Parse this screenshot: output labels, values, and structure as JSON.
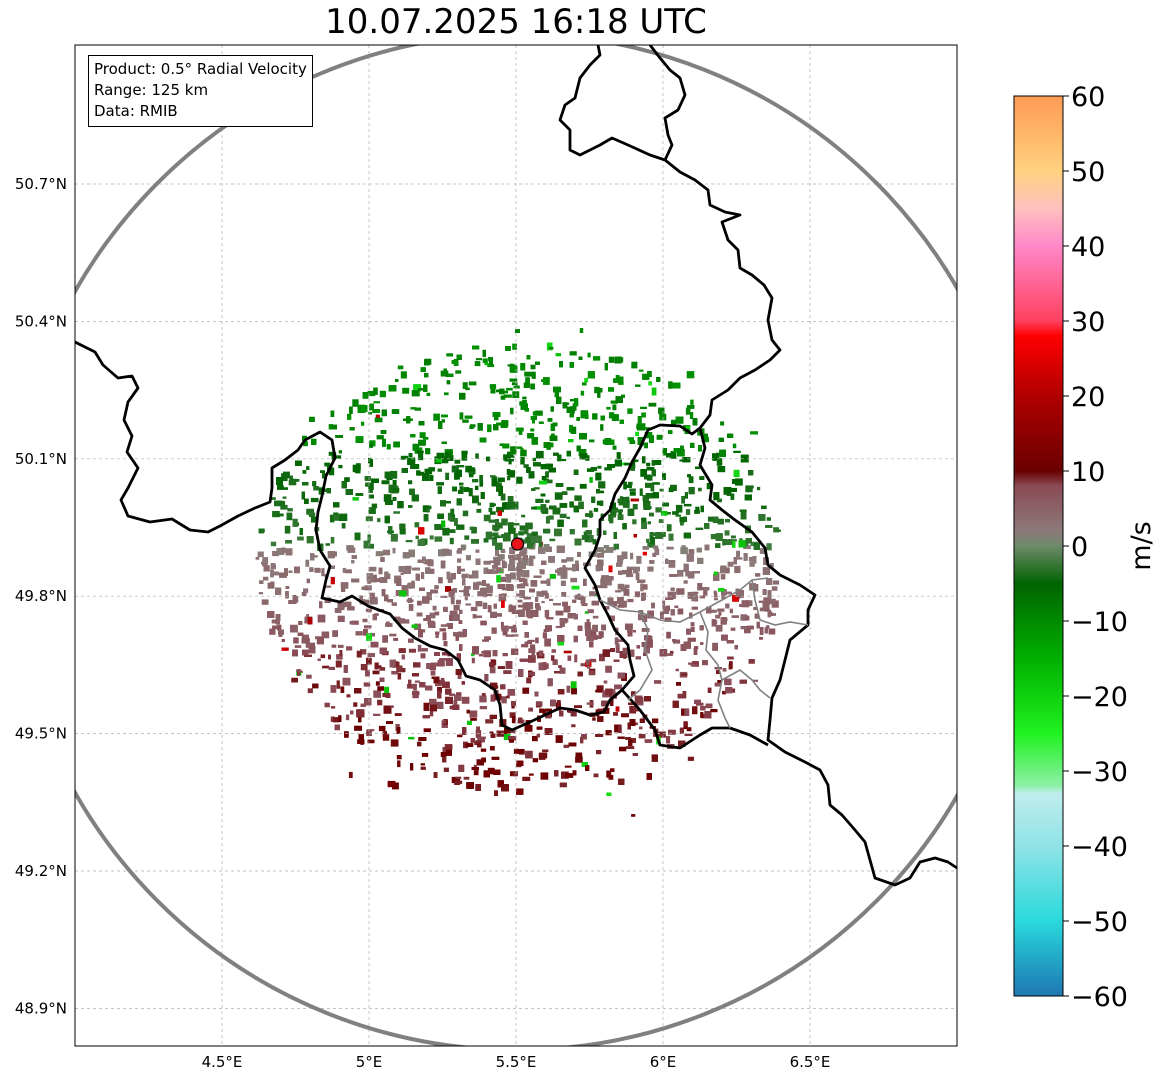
{
  "title": "10.07.2025 16:18 UTC",
  "info": {
    "product": "Product: 0.5° Radial Velocity",
    "range": "Range: 125 km",
    "source": "Data: RMIB"
  },
  "axes": {
    "lon_ticks": [
      "4.5°E",
      "5°E",
      "5.5°E",
      "6°E",
      "6.5°E"
    ],
    "lat_ticks": [
      "50.7°N",
      "50.4°N",
      "50.1°N",
      "49.8°N",
      "49.5°N",
      "49.2°N",
      "48.9°N"
    ],
    "lon_values": [
      4.5,
      5.0,
      5.5,
      6.0,
      6.5
    ],
    "lat_values": [
      50.7,
      50.4,
      50.1,
      49.8,
      49.5,
      49.2,
      48.9
    ],
    "lon_range": [
      4.0,
      7.0
    ],
    "lat_range": [
      48.8,
      51.0
    ]
  },
  "radar_site": {
    "lon": 5.505,
    "lat": 49.914
  },
  "colorbar": {
    "label": "m/s",
    "min": -60,
    "max": 60,
    "tick_values": [
      60,
      50,
      40,
      30,
      20,
      10,
      0,
      -10,
      -20,
      -30,
      -40,
      -50,
      -60
    ],
    "tick_labels": [
      "60",
      "50",
      "40",
      "30",
      "20",
      "10",
      "0",
      "−10",
      "−20",
      "−30",
      "−40",
      "−50",
      "−60"
    ],
    "stops": [
      {
        "v": -60,
        "c": "#1f77b4"
      },
      {
        "v": -55,
        "c": "#22a8c8"
      },
      {
        "v": -50,
        "c": "#2ad9dc"
      },
      {
        "v": -40,
        "c": "#8fe3e6"
      },
      {
        "v": -33,
        "c": "#c0edee"
      },
      {
        "v": -32,
        "c": "#8ff0a8"
      },
      {
        "v": -25,
        "c": "#1ff21f"
      },
      {
        "v": -15,
        "c": "#00b000"
      },
      {
        "v": -5,
        "c": "#006400"
      },
      {
        "v": 0,
        "c": "#6e8a6a"
      },
      {
        "v": 2,
        "c": "#8c7a7a"
      },
      {
        "v": 8,
        "c": "#8a4a55"
      },
      {
        "v": 10,
        "c": "#6a0000"
      },
      {
        "v": 20,
        "c": "#b00000"
      },
      {
        "v": 28,
        "c": "#ff0000"
      },
      {
        "v": 30,
        "c": "#ff4060"
      },
      {
        "v": 40,
        "c": "#ff88c8"
      },
      {
        "v": 45,
        "c": "#ffc0c0"
      },
      {
        "v": 50,
        "c": "#ffd27f"
      },
      {
        "v": 60,
        "c": "#ff9a55"
      }
    ]
  },
  "colors": {
    "range_ring": "#808080",
    "border": "#000000",
    "subborder": "#808080",
    "grid": "#b0b0b0",
    "site_marker": "#e8141c"
  }
}
